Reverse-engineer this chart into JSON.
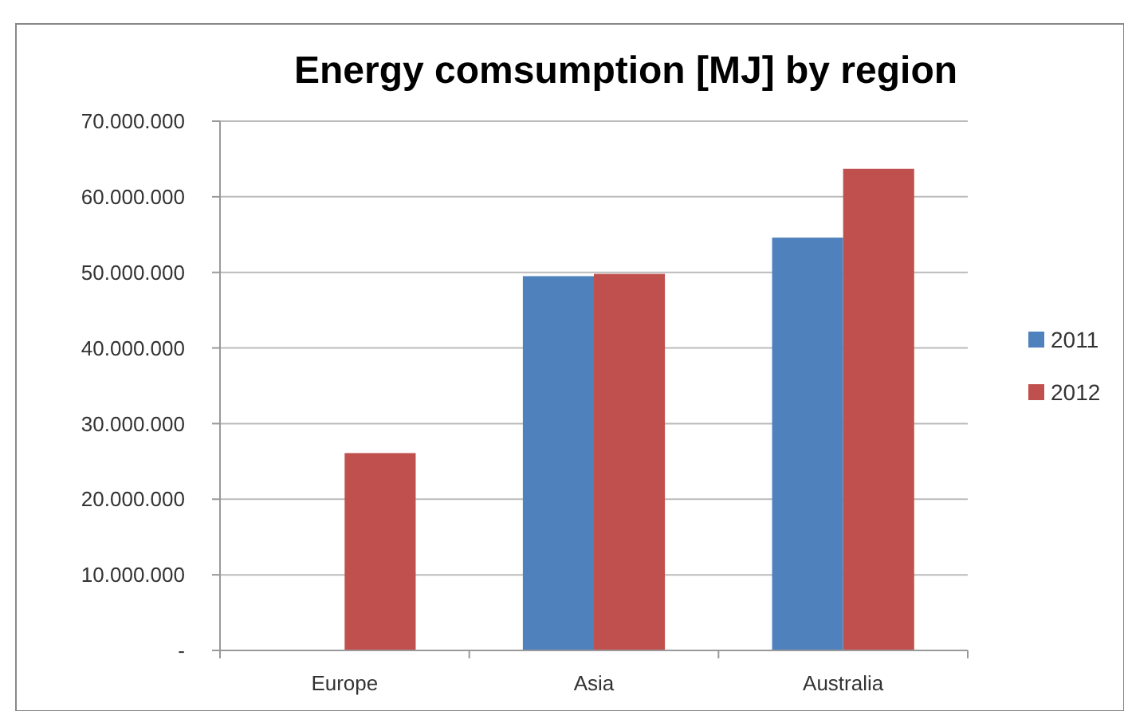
{
  "chart_data": {
    "type": "bar",
    "title": "Energy comsumption [MJ] by region",
    "categories": [
      "Europe",
      "Asia",
      "Australia"
    ],
    "series": [
      {
        "name": "2011",
        "color": "#4f81bd",
        "values": [
          null,
          49500000,
          54600000
        ]
      },
      {
        "name": "2012",
        "color": "#c0504d",
        "values": [
          26100000,
          49800000,
          63700000
        ]
      }
    ],
    "ylim": [
      0,
      70000000
    ],
    "yticks": [
      {
        "value": 0,
        "label": "-"
      },
      {
        "value": 10000000,
        "label": "10.000.000"
      },
      {
        "value": 20000000,
        "label": "20.000.000"
      },
      {
        "value": 30000000,
        "label": "30.000.000"
      },
      {
        "value": 40000000,
        "label": "40.000.000"
      },
      {
        "value": 50000000,
        "label": "50.000.000"
      },
      {
        "value": 60000000,
        "label": "60.000.000"
      },
      {
        "value": 70000000,
        "label": "70.000.000"
      }
    ],
    "grid": "y",
    "legend": "right"
  }
}
